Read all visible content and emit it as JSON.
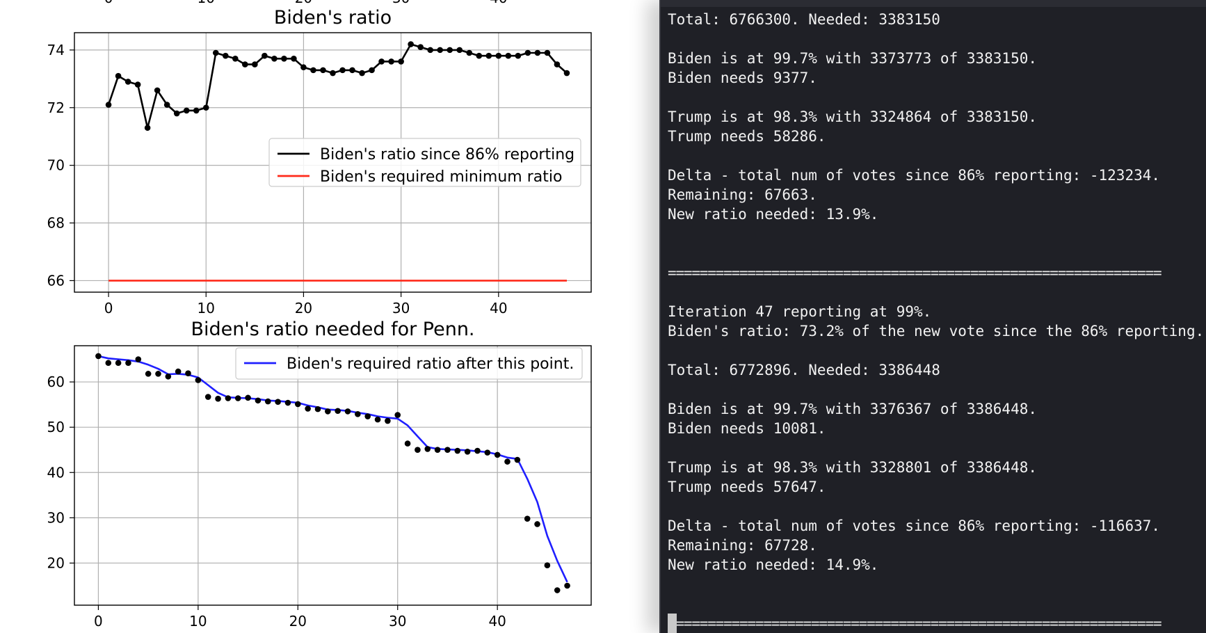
{
  "chart_data": [
    {
      "type": "line",
      "title": "Biden's ratio",
      "xlim": [
        -3.5,
        49.5
      ],
      "ylim": [
        65.6,
        74.6
      ],
      "x_ticks": [
        0,
        10,
        20,
        30,
        40
      ],
      "y_ticks": [
        66,
        68,
        70,
        72,
        74
      ],
      "grid": true,
      "legend_position": "center-right",
      "series": [
        {
          "name": "Biden's ratio since 86% reporting",
          "color": "#000000",
          "marker": "dot",
          "x": [
            0,
            1,
            2,
            3,
            4,
            5,
            6,
            7,
            8,
            9,
            10,
            11,
            12,
            13,
            14,
            15,
            16,
            17,
            18,
            19,
            20,
            21,
            22,
            23,
            24,
            25,
            26,
            27,
            28,
            29,
            30,
            31,
            32,
            33,
            34,
            35,
            36,
            37,
            38,
            39,
            40,
            41,
            42,
            43,
            44,
            45,
            46,
            47
          ],
          "y": [
            72.1,
            73.1,
            72.9,
            72.8,
            71.3,
            72.6,
            72.1,
            71.8,
            71.9,
            71.9,
            72.0,
            73.9,
            73.8,
            73.7,
            73.5,
            73.5,
            73.8,
            73.7,
            73.7,
            73.7,
            73.4,
            73.3,
            73.3,
            73.2,
            73.3,
            73.3,
            73.2,
            73.3,
            73.6,
            73.6,
            73.6,
            74.2,
            74.1,
            74.0,
            74.0,
            74.0,
            74.0,
            73.9,
            73.8,
            73.8,
            73.8,
            73.8,
            73.8,
            73.9,
            73.9,
            73.9,
            73.5,
            73.2
          ]
        },
        {
          "name": "Biden's required minimum ratio",
          "color": "#ff2a1a",
          "marker": "none",
          "x": [
            0,
            47
          ],
          "y": [
            66,
            66
          ]
        }
      ]
    },
    {
      "type": "line",
      "title": "Biden's ratio needed for Penn.",
      "xlim": [
        -2.4,
        49.4
      ],
      "ylim": [
        10.7,
        68.0
      ],
      "x_ticks": [
        0,
        10,
        20,
        30,
        40
      ],
      "y_ticks": [
        20,
        30,
        40,
        50,
        60
      ],
      "grid": true,
      "legend_position": "top-right",
      "series": [
        {
          "name": "Biden's required ratio after this point.",
          "color": "#1f1fff",
          "marker": "none",
          "x": [
            0,
            1,
            2,
            3,
            4,
            5,
            6,
            7,
            8,
            9,
            10,
            11,
            12,
            13,
            14,
            15,
            16,
            17,
            18,
            19,
            20,
            21,
            22,
            23,
            24,
            25,
            26,
            27,
            28,
            29,
            30,
            31,
            32,
            33,
            34,
            35,
            36,
            37,
            38,
            39,
            40,
            41,
            42,
            43,
            44,
            45,
            46,
            47
          ],
          "y": [
            65.7,
            65.2,
            65.0,
            64.8,
            64.5,
            63.8,
            62.9,
            61.7,
            61.8,
            61.6,
            61.0,
            59.3,
            57.6,
            56.6,
            56.5,
            56.4,
            56.2,
            55.9,
            55.8,
            55.6,
            55.4,
            54.8,
            54.4,
            53.9,
            53.8,
            53.6,
            53.2,
            52.9,
            52.4,
            52.1,
            51.9,
            50.4,
            48.0,
            45.6,
            45.2,
            45.1,
            45.0,
            44.9,
            44.7,
            44.5,
            44.0,
            43.3,
            43.0,
            38.6,
            33.5,
            26.0,
            20.5,
            15.8
          ]
        },
        {
          "name": "",
          "color": "#000000",
          "marker": "dot",
          "linestyle": "none",
          "x": [
            0,
            1,
            2,
            3,
            4,
            5,
            6,
            7,
            8,
            9,
            10,
            11,
            12,
            13,
            14,
            15,
            16,
            17,
            18,
            19,
            20,
            21,
            22,
            23,
            24,
            25,
            26,
            27,
            28,
            29,
            30,
            31,
            32,
            33,
            34,
            35,
            36,
            37,
            38,
            39,
            40,
            41,
            42,
            43,
            44,
            45,
            46,
            47
          ],
          "y": [
            65.7,
            64.2,
            64.2,
            64.2,
            65.0,
            61.8,
            61.8,
            61.2,
            62.3,
            61.9,
            60.4,
            56.7,
            56.3,
            56.4,
            56.4,
            56.5,
            55.9,
            55.7,
            55.6,
            55.4,
            55.1,
            54.1,
            54.0,
            53.5,
            53.6,
            53.5,
            52.9,
            52.4,
            51.7,
            51.4,
            52.7,
            46.4,
            45.0,
            45.2,
            45.0,
            45.0,
            44.8,
            44.6,
            44.8,
            44.4,
            43.9,
            42.4,
            42.8,
            29.8,
            28.6,
            19.5,
            14.0,
            15.0
          ]
        }
      ]
    }
  ],
  "terminal": {
    "lines": [
      "Total: 6766300. Needed: 3383150",
      "",
      "Biden is at 99.7% with 3373773 of 3383150.",
      "Biden needs 9377.",
      "",
      "Trump is at 98.3% with 3324864 of 3383150.",
      "Trump needs 58286.",
      "",
      "Delta - total num of votes since 86% reporting: -123234.",
      "Remaining: 67663.",
      "New ratio needed: 13.9%.",
      "",
      "",
      "==============================================================",
      "",
      "Iteration 47 reporting at 99%.",
      "Biden's ratio: 73.2% of the new vote since the 86% reporting.",
      "",
      "Total: 6772896. Needed: 3386448",
      "",
      "Biden is at 99.7% with 3376367 of 3386448.",
      "Biden needs 10081.",
      "",
      "Trump is at 98.3% with 3328801 of 3386448.",
      "Trump needs 57647.",
      "",
      "Delta - total num of votes since 86% reporting: -116637.",
      "Remaining: 67728.",
      "New ratio needed: 14.9%.",
      "",
      "",
      "=============================================================="
    ]
  }
}
